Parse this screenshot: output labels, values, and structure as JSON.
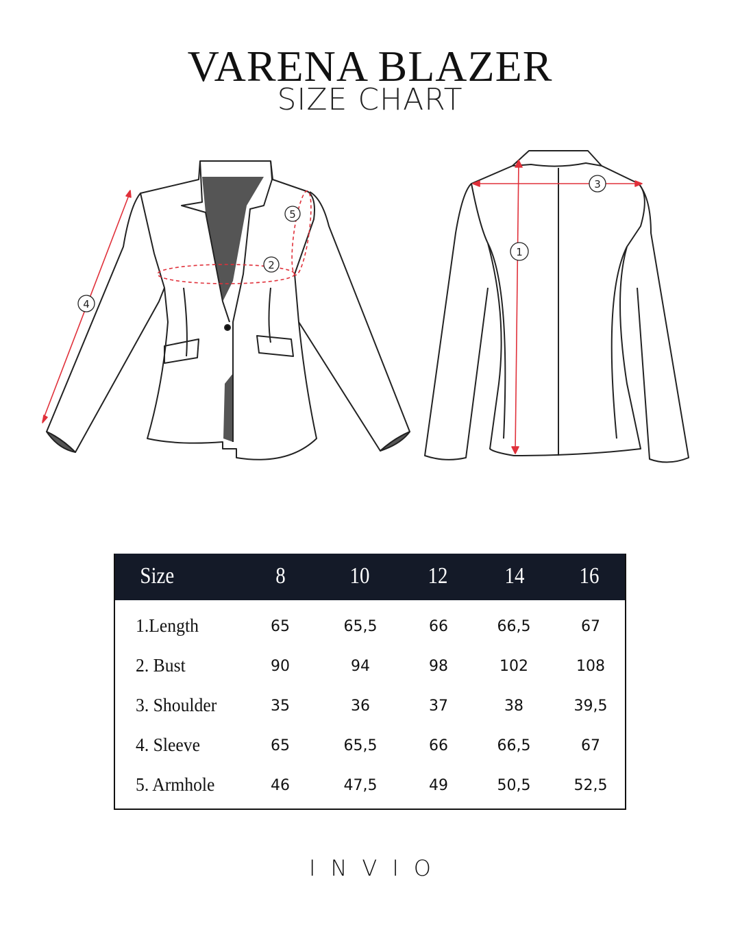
{
  "header": {
    "title": "VARENA BLAZER",
    "subtitle": "SIZE CHART"
  },
  "diagram": {
    "front_markers": [
      "2",
      "4",
      "5"
    ],
    "back_markers": [
      "1",
      "3"
    ],
    "measure_color": "#e0303a",
    "lining_color": "#555555"
  },
  "table": {
    "header_bg": "#141a28",
    "columns": [
      "Size",
      "8",
      "10",
      "12",
      "14",
      "16"
    ],
    "rows": [
      {
        "label": "1.Length",
        "values": [
          "65",
          "65,5",
          "66",
          "66,5",
          "67"
        ]
      },
      {
        "label": "2. Bust",
        "values": [
          "90",
          "94",
          "98",
          "102",
          "108"
        ]
      },
      {
        "label": "3. Shoulder",
        "values": [
          "35",
          "36",
          "37",
          "38",
          "39,5"
        ]
      },
      {
        "label": "4. Sleeve",
        "values": [
          "65",
          "65,5",
          "66",
          "66,5",
          "67"
        ]
      },
      {
        "label": "5. Armhole",
        "values": [
          "46",
          "47,5",
          "49",
          "50,5",
          "52,5"
        ]
      }
    ]
  },
  "brand": {
    "logo": "INVIO"
  }
}
